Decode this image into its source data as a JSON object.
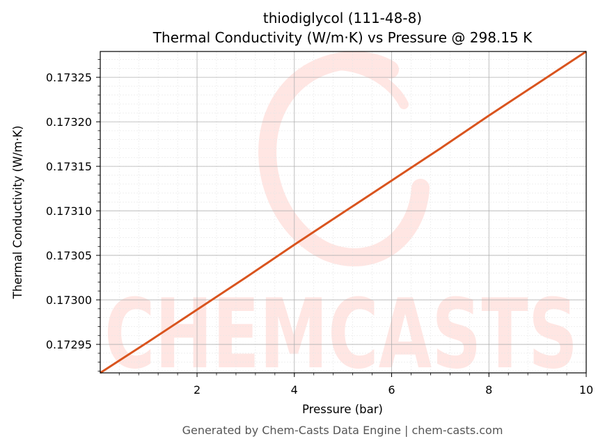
{
  "chart_data": {
    "type": "line",
    "title": "thiodiglycol (111-48-8)",
    "subtitle": "Thermal Conductivity (W/m·K) vs Pressure @ 298.15 K",
    "xlabel": "Pressure (bar)",
    "ylabel": "Thermal Conductivity (W/m·K)",
    "xlim": [
      0.01,
      10
    ],
    "ylim": [
      0.172918,
      0.173279
    ],
    "x_ticks": [
      2,
      4,
      6,
      8,
      10
    ],
    "y_ticks": [
      0.17295,
      0.173,
      0.17305,
      0.1731,
      0.17315,
      0.1732,
      0.17325
    ],
    "x_tick_labels": [
      "2",
      "4",
      "6",
      "8",
      "10"
    ],
    "y_tick_labels": [
      "0.17295",
      "0.17300",
      "0.17305",
      "0.17310",
      "0.17315",
      "0.17320",
      "0.17325"
    ],
    "grid": true,
    "series": [
      {
        "color": "#d9541e",
        "x": [
          0.01,
          1,
          2,
          3,
          4,
          5,
          6,
          7,
          8,
          9,
          10
        ],
        "y": [
          0.172918,
          0.172953,
          0.172989,
          0.173025,
          0.173062,
          0.173098,
          0.173134,
          0.17317,
          0.173207,
          0.173243,
          0.173279
        ]
      }
    ],
    "watermark": "CHEMCASTS",
    "footer": "Generated by Chem-Casts Data Engine | chem-casts.com"
  }
}
